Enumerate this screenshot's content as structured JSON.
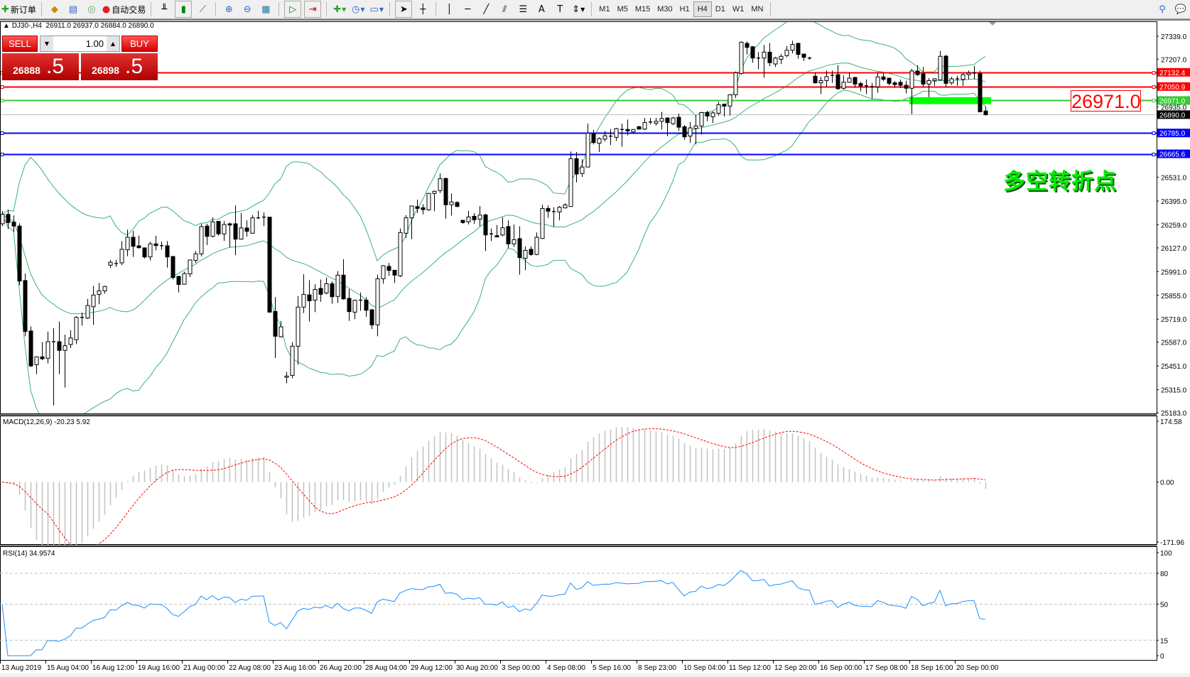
{
  "toolbar": {
    "new_order": "新订单",
    "auto_trading": "自动交易",
    "timeframes": [
      "M1",
      "M5",
      "M15",
      "M30",
      "H1",
      "H4",
      "D1",
      "W1",
      "MN"
    ],
    "active_timeframe": "H4",
    "icons": [
      "new-order-icon",
      "market-watch-icon",
      "navigator-icon",
      "data-window-icon",
      "auto-trading-icon",
      "bar-chart-icon",
      "candlestick-icon",
      "line-chart-icon",
      "zoom-in-icon",
      "zoom-out-icon",
      "tile-windows-icon",
      "auto-scroll-icon",
      "chart-shift-icon",
      "indicators-icon",
      "periodicity-icon",
      "templates-icon",
      "cursor-icon",
      "crosshair-icon",
      "vertical-line-icon",
      "horizontal-line-icon",
      "trendline-icon",
      "equidistant-channel-icon",
      "fibonacci-icon",
      "text-icon",
      "text-label-icon",
      "arrows-icon",
      "search-icon",
      "chat-icon"
    ]
  },
  "chart": {
    "header_symbol": "DJ30-,H4",
    "header_ohlc": "26911.0 26937.0 26884.0 26890.0",
    "trade_panel": {
      "sell_label": "SELL",
      "buy_label": "BUY",
      "lot": "1.00",
      "sell_price_main": "26888",
      "sell_price_big": ".5",
      "buy_price_main": "26898",
      "buy_price_big": ".5"
    },
    "annotation": "多空转折点",
    "price_callout": "26971.0"
  },
  "chart_data": {
    "type": "candlestick",
    "symbol": "DJ30-",
    "timeframe": "H4",
    "ylim": [
      25183.0,
      27339.0
    ],
    "candle_format": [
      "open",
      "high",
      "low",
      "close"
    ],
    "candles": [
      [
        26265,
        26339,
        26252,
        26319
      ],
      [
        26319,
        26346,
        26234,
        26272
      ],
      [
        26275,
        26313,
        26218,
        26252
      ],
      [
        26252,
        26268,
        25913,
        25937
      ],
      [
        25940,
        25980,
        25621,
        25648
      ],
      [
        25651,
        25678,
        25445,
        25451
      ],
      [
        25458,
        25506,
        25404,
        25503
      ],
      [
        25503,
        25587,
        25485,
        25492
      ],
      [
        25495,
        25648,
        25465,
        25590
      ],
      [
        25590,
        25668,
        25225,
        25590
      ],
      [
        25590,
        25705,
        25404,
        25540
      ],
      [
        25540,
        25630,
        25327,
        25567
      ],
      [
        25574,
        25655,
        25553,
        25611
      ],
      [
        25601,
        25736,
        25576,
        25729
      ],
      [
        25729,
        25757,
        25682,
        25729
      ],
      [
        25725,
        25835,
        25720,
        25797
      ],
      [
        25790,
        25910,
        25686,
        25857
      ],
      [
        25861,
        25926,
        25804,
        25881
      ],
      [
        25881,
        25910,
        25865,
        25906
      ],
      [
        26028,
        26058,
        26012,
        26045
      ],
      [
        26037,
        26058,
        26018,
        26037
      ],
      [
        26041,
        26166,
        26028,
        26119
      ],
      [
        26116,
        26231,
        26079,
        26188
      ],
      [
        26188,
        26224,
        26075,
        26136
      ],
      [
        26139,
        26197,
        26123,
        26128
      ],
      [
        26127,
        26130,
        26066,
        26075
      ],
      [
        26075,
        26163,
        26055,
        26150
      ],
      [
        26150,
        26197,
        26113,
        26140
      ],
      [
        26140,
        26163,
        26116,
        26140
      ],
      [
        26139,
        26166,
        26014,
        26075
      ],
      [
        26078,
        26078,
        25946,
        25957
      ],
      [
        25964,
        25964,
        25872,
        25917
      ],
      [
        25919,
        25991,
        25917,
        25980
      ],
      [
        25978,
        26058,
        25960,
        26058
      ],
      [
        26055,
        26109,
        26041,
        26093
      ],
      [
        26093,
        26265,
        26079,
        26249
      ],
      [
        26252,
        26265,
        26143,
        26193
      ],
      [
        26193,
        26302,
        26186,
        26276
      ],
      [
        26279,
        26279,
        26197,
        26207
      ],
      [
        26207,
        26281,
        26167,
        26261
      ],
      [
        26265,
        26272,
        26130,
        26258
      ],
      [
        26265,
        26370,
        26085,
        26177
      ],
      [
        26177,
        26326,
        26174,
        26241
      ],
      [
        26241,
        26285,
        26191,
        26222
      ],
      [
        26211,
        26315,
        26208,
        26299
      ],
      [
        26299,
        26340,
        26292,
        26299
      ],
      [
        26303,
        26330,
        26252,
        26303
      ],
      [
        26303,
        26303,
        25756,
        25759
      ],
      [
        25763,
        25845,
        25496,
        25621
      ],
      [
        25618,
        25709,
        25614,
        25675
      ],
      [
        25386,
        25417,
        25352,
        25393
      ],
      [
        25397,
        25587,
        25381,
        25564
      ],
      [
        25564,
        25851,
        25458,
        25788
      ],
      [
        25788,
        25976,
        25754,
        25861
      ],
      [
        25858,
        25942,
        25705,
        25824
      ],
      [
        25828,
        25919,
        25759,
        25889
      ],
      [
        25895,
        25946,
        25818,
        25861
      ],
      [
        25869,
        25957,
        25861,
        25922
      ],
      [
        25922,
        25936,
        25807,
        25847
      ],
      [
        25849,
        25994,
        25811,
        25971
      ],
      [
        25971,
        26062,
        25831,
        25835
      ],
      [
        25838,
        25892,
        25709,
        25762
      ],
      [
        25759,
        25831,
        25719,
        25827
      ],
      [
        25828,
        25872,
        25767,
        25828
      ],
      [
        25828,
        25845,
        25732,
        25770
      ],
      [
        25773,
        25773,
        25662,
        25686
      ],
      [
        25686,
        25973,
        25621,
        25950
      ],
      [
        25950,
        26028,
        25922,
        26025
      ],
      [
        26021,
        26041,
        25967,
        25998
      ],
      [
        25999,
        25999,
        25926,
        25971
      ],
      [
        25967,
        26238,
        25960,
        26215
      ],
      [
        26211,
        26315,
        26184,
        26299
      ],
      [
        26299,
        26367,
        26177,
        26367
      ],
      [
        26363,
        26403,
        26326,
        26353
      ],
      [
        26357,
        26377,
        26319,
        26346
      ],
      [
        26344,
        26441,
        26340,
        26439
      ],
      [
        26439,
        26455,
        26337,
        26451
      ],
      [
        26455,
        26554,
        26441,
        26523
      ],
      [
        26525,
        26527,
        26295,
        26374
      ],
      [
        26374,
        26439,
        26312,
        26390
      ],
      [
        26387,
        26394,
        26360,
        26364
      ],
      [
        26285,
        26285,
        26265,
        26272
      ],
      [
        26276,
        26340,
        26261,
        26304
      ],
      [
        26308,
        26326,
        26265,
        26288
      ],
      [
        26292,
        26367,
        26251,
        26315
      ],
      [
        26316,
        26323,
        26109,
        26201
      ],
      [
        26207,
        26238,
        26166,
        26207
      ],
      [
        26197,
        26258,
        26188,
        26190
      ],
      [
        26201,
        26302,
        26193,
        26242
      ],
      [
        26249,
        26285,
        26125,
        26150
      ],
      [
        26150,
        26261,
        26133,
        26174
      ],
      [
        26180,
        26251,
        25973,
        26071
      ],
      [
        26068,
        26136,
        26000,
        26113
      ],
      [
        26119,
        26136,
        26082,
        26089
      ],
      [
        26089,
        26215,
        26085,
        26188
      ],
      [
        26181,
        26374,
        26177,
        26353
      ],
      [
        26353,
        26370,
        26299,
        26337
      ],
      [
        26335,
        26360,
        26247,
        26335
      ],
      [
        26333,
        26367,
        26285,
        26360
      ],
      [
        26356,
        26383,
        26353,
        26373
      ],
      [
        26364,
        26679,
        26364,
        26638
      ],
      [
        26638,
        26676,
        26502,
        26550
      ],
      [
        26553,
        26634,
        26533,
        26590
      ],
      [
        26590,
        26839,
        26590,
        26784
      ],
      [
        26783,
        26803,
        26719,
        26730
      ],
      [
        26726,
        26760,
        26676,
        26753
      ],
      [
        26750,
        26796,
        26737,
        26769
      ],
      [
        26767,
        26807,
        26716,
        26767
      ],
      [
        26760,
        26814,
        26740,
        26810
      ],
      [
        26805,
        26839,
        26706,
        26805
      ],
      [
        26805,
        26862,
        26771,
        26797
      ],
      [
        26791,
        26808,
        26784,
        26805
      ],
      [
        26821,
        26825,
        26805,
        26807
      ],
      [
        26807,
        26871,
        26801,
        26845
      ],
      [
        26848,
        26871,
        26834,
        26848
      ],
      [
        26841,
        26871,
        26828,
        26852
      ],
      [
        26852,
        26906,
        26805,
        26868
      ],
      [
        26871,
        26875,
        26767,
        26844
      ],
      [
        26838,
        26878,
        26830,
        26871
      ],
      [
        26875,
        26896,
        26798,
        26818
      ],
      [
        26821,
        26830,
        26746,
        26763
      ],
      [
        26767,
        26848,
        26729,
        26814
      ],
      [
        26811,
        26889,
        26719,
        26825
      ],
      [
        26825,
        26906,
        26776,
        26902
      ],
      [
        26902,
        26912,
        26852,
        26882
      ],
      [
        26878,
        26909,
        26841,
        26900
      ],
      [
        26898,
        26963,
        26885,
        26947
      ],
      [
        26950,
        26952,
        26879,
        26939
      ],
      [
        26939,
        27007,
        26885,
        27004
      ],
      [
        27004,
        27137,
        26986,
        27130
      ],
      [
        27126,
        27309,
        27119,
        27305
      ],
      [
        27298,
        27309,
        27235,
        27275
      ],
      [
        27279,
        27282,
        27187,
        27214
      ],
      [
        27214,
        27248,
        27150,
        27214
      ],
      [
        27214,
        27289,
        27102,
        27248
      ],
      [
        27248,
        27300,
        27167,
        27187
      ],
      [
        27180,
        27221,
        27163,
        27214
      ],
      [
        27207,
        27237,
        27180,
        27224
      ],
      [
        27228,
        27282,
        27218,
        27259
      ],
      [
        27259,
        27313,
        27241,
        27292
      ],
      [
        27298,
        27302,
        27210,
        27235
      ],
      [
        27237,
        27237,
        27198,
        27218
      ],
      [
        27214,
        27221,
        27205,
        27214
      ],
      [
        27110,
        27130,
        27069,
        27072
      ],
      [
        27072,
        27106,
        27008,
        27085
      ],
      [
        27085,
        27142,
        27049,
        27108
      ],
      [
        27115,
        27142,
        27072,
        27115
      ],
      [
        27119,
        27173,
        27034,
        27038
      ],
      [
        27041,
        27115,
        27034,
        27076
      ],
      [
        27075,
        27133,
        27075,
        27099
      ],
      [
        27103,
        27106,
        27045,
        27065
      ],
      [
        27068,
        27078,
        27024,
        27055
      ],
      [
        27055,
        27092,
        27008,
        27055
      ],
      [
        27051,
        27072,
        26980,
        27051
      ],
      [
        27049,
        27133,
        27015,
        27106
      ],
      [
        27106,
        27126,
        27082,
        27092
      ],
      [
        27099,
        27099,
        27058,
        27069
      ],
      [
        27072,
        27082,
        27045,
        27062
      ],
      [
        27075,
        27092,
        27042,
        27058
      ],
      [
        27058,
        27085,
        27011,
        27041
      ],
      [
        27041,
        27153,
        26893,
        27140
      ],
      [
        27140,
        27173,
        27112,
        27119
      ],
      [
        27123,
        27163,
        27051,
        27065
      ],
      [
        27065,
        27099,
        26990,
        27085
      ],
      [
        27085,
        27099,
        27055,
        27095
      ],
      [
        27089,
        27255,
        27085,
        27224
      ],
      [
        27225,
        27232,
        27045,
        27069
      ],
      [
        27072,
        27106,
        27061,
        27095
      ],
      [
        27095,
        27112,
        27055,
        27095
      ],
      [
        27092,
        27126,
        27055,
        27119
      ],
      [
        27119,
        27142,
        27092,
        27128
      ],
      [
        27128,
        27169,
        27092,
        27128
      ],
      [
        27126,
        27142,
        26906,
        26906
      ],
      [
        26911,
        26937,
        26884,
        26890
      ]
    ],
    "price_axis_ticks": [
      "27339.0",
      "27207.0",
      "26935.0",
      "26531.0",
      "26395.0",
      "26259.0",
      "26127.0",
      "25991.0",
      "25855.0",
      "25719.0",
      "25587.0",
      "25451.0",
      "25315.0",
      "25183.0"
    ],
    "hlines": [
      {
        "price": 27132.4,
        "label": "27132.4",
        "color": "#ff0000"
      },
      {
        "price": 27050.9,
        "label": "27050.9",
        "color": "#ff0000"
      },
      {
        "price": 26971.0,
        "label": "26971.0",
        "color": "#33cc33"
      },
      {
        "price": 26890.0,
        "label": "26890.0",
        "color": "#c0c0c0",
        "label_bg": "#000000"
      },
      {
        "price": 26785.0,
        "label": "26785.0",
        "color": "#0000ff"
      },
      {
        "price": 26665.6,
        "label": "26665.6",
        "color": "#0000ff"
      }
    ],
    "rectangle": {
      "from_bar": 160,
      "to_bar": 174,
      "low": 26950,
      "high": 26990,
      "color": "#00ff00"
    },
    "time_labels": [
      {
        "bar": 0,
        "label": "13 Aug 2019"
      },
      {
        "bar": 8,
        "label": "15 Aug 04:00"
      },
      {
        "bar": 16,
        "label": "16 Aug 12:00"
      },
      {
        "bar": 24,
        "label": "19 Aug 16:00"
      },
      {
        "bar": 32,
        "label": "21 Aug 00:00"
      },
      {
        "bar": 40,
        "label": "22 Aug 08:00"
      },
      {
        "bar": 48,
        "label": "23 Aug 16:00"
      },
      {
        "bar": 56,
        "label": "26 Aug 20:00"
      },
      {
        "bar": 64,
        "label": "28 Aug 04:00"
      },
      {
        "bar": 72,
        "label": "29 Aug 12:00"
      },
      {
        "bar": 80,
        "label": "30 Aug 20:00"
      },
      {
        "bar": 88,
        "label": "3 Sep 00:00"
      },
      {
        "bar": 96,
        "label": "4 Sep 08:00"
      },
      {
        "bar": 104,
        "label": "5 Sep 16:00"
      },
      {
        "bar": 112,
        "label": "8 Sep 23:00"
      },
      {
        "bar": 120,
        "label": "10 Sep 04:00"
      },
      {
        "bar": 128,
        "label": "11 Sep 12:00"
      },
      {
        "bar": 136,
        "label": "12 Sep 20:00"
      },
      {
        "bar": 144,
        "label": "16 Sep 00:00"
      },
      {
        "bar": 152,
        "label": "17 Sep 08:00"
      },
      {
        "bar": 160,
        "label": "18 Sep 16:00"
      },
      {
        "bar": 168,
        "label": "20 Sep 00:00"
      }
    ],
    "indicators": {
      "bollinger": {
        "period": 20,
        "deviation": 2,
        "color": "#3cb371"
      },
      "macd": {
        "label": "MACD(12,26,9) -20.23 5.92",
        "fast": 12,
        "slow": 26,
        "signal": 9,
        "ylim": [
          -171.96,
          174.58
        ],
        "ticks": [
          "174.58",
          "0.00",
          "-171.96"
        ],
        "histogram_color": "#c0c0c0",
        "signal_color": "#ff0000"
      },
      "rsi": {
        "label": "RSI(14) 34.9574",
        "period": 14,
        "levels": [
          80,
          50,
          15
        ],
        "ylim": [
          0,
          100
        ],
        "ticks": [
          "100",
          "80",
          "50",
          "15",
          "0"
        ],
        "color": "#1e90ff"
      }
    }
  }
}
